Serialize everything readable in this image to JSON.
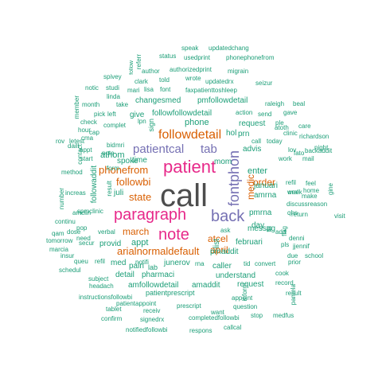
{
  "colors": {
    "t1": "#4d4d4d",
    "t2": "#e7298a",
    "t3": "#7570b3",
    "t4": "#d95f02",
    "t5": "#1b9e77"
  },
  "words": [
    {
      "text": "call",
      "tier": 1
    },
    {
      "text": "patient",
      "tier": 2
    },
    {
      "text": "paragraph",
      "tier": 2
    },
    {
      "text": "note",
      "tier": 2
    },
    {
      "text": "back",
      "tier": 3
    },
    {
      "text": "fontphon",
      "tier": 3
    },
    {
      "text": "patientcal",
      "tier": 3
    },
    {
      "text": "tab",
      "tier": 3
    },
    {
      "text": "followdetail",
      "tier": 4
    },
    {
      "text": "phonefrom",
      "tier": 4
    },
    {
      "text": "followbi",
      "tier": 4
    },
    {
      "text": "arialnormaldefault",
      "tier": 4
    },
    {
      "text": "state",
      "tier": 4
    },
    {
      "text": "march",
      "tier": 4
    },
    {
      "text": "atcel",
      "tier": 4
    },
    {
      "text": "april",
      "tier": 4
    },
    {
      "text": "medic",
      "tier": 4
    },
    {
      "text": "order",
      "tier": 4
    },
    {
      "text": "speak",
      "tier": 5
    },
    {
      "text": "updatedchang",
      "tier": 5
    },
    {
      "text": "status",
      "tier": 5
    },
    {
      "text": "usedprint",
      "tier": 5
    },
    {
      "text": "phonephonefrom",
      "tier": 5
    },
    {
      "text": "referr",
      "tier": 5
    },
    {
      "text": "follow",
      "tier": 5
    },
    {
      "text": "author",
      "tier": 5
    },
    {
      "text": "authorizedprint",
      "tier": 5
    },
    {
      "text": "migrain",
      "tier": 5
    },
    {
      "text": "spivey",
      "tier": 5
    },
    {
      "text": "clark",
      "tier": 5
    },
    {
      "text": "told",
      "tier": 5
    },
    {
      "text": "wrote",
      "tier": 5
    },
    {
      "text": "updatedrx",
      "tier": 5
    },
    {
      "text": "seizur",
      "tier": 5
    },
    {
      "text": "notic",
      "tier": 5
    },
    {
      "text": "studi",
      "tier": 5
    },
    {
      "text": "mari",
      "tier": 5
    },
    {
      "text": "lisa",
      "tier": 5
    },
    {
      "text": "font",
      "tier": 5
    },
    {
      "text": "faxpatienttoshleep",
      "tier": 5
    },
    {
      "text": "linda",
      "tier": 5
    },
    {
      "text": "member",
      "tier": 5
    },
    {
      "text": "month",
      "tier": 5
    },
    {
      "text": "take",
      "tier": 5
    },
    {
      "text": "changesmed",
      "tier": 5
    },
    {
      "text": "pmfollowdetail",
      "tier": 5
    },
    {
      "text": "raleigh",
      "tier": 5
    },
    {
      "text": "beal",
      "tier": 5
    },
    {
      "text": "pick",
      "tier": 5
    },
    {
      "text": "left",
      "tier": 5
    },
    {
      "text": "give",
      "tier": 5
    },
    {
      "text": "followfollowdetail",
      "tier": 5
    },
    {
      "text": "action",
      "tier": 5
    },
    {
      "text": "send",
      "tier": 5
    },
    {
      "text": "gave",
      "tier": 5
    },
    {
      "text": "check",
      "tier": 5
    },
    {
      "text": "hour",
      "tier": 5
    },
    {
      "text": "complet",
      "tier": 5
    },
    {
      "text": "lpn",
      "tier": 5
    },
    {
      "text": "sign",
      "tier": 5
    },
    {
      "text": "phone",
      "tier": 5
    },
    {
      "text": "request",
      "tier": 5
    },
    {
      "text": "ple",
      "tier": 5
    },
    {
      "text": "atoth",
      "tier": 5
    },
    {
      "text": "clinic",
      "tier": 5
    },
    {
      "text": "care",
      "tier": 5
    },
    {
      "text": "cap",
      "tier": 5
    },
    {
      "text": "cma",
      "tier": 5
    },
    {
      "text": "bid",
      "tier": 5
    },
    {
      "text": "mri",
      "tier": 5
    },
    {
      "text": "hol",
      "tier": 5
    },
    {
      "text": "prn",
      "tier": 5
    },
    {
      "text": "today",
      "tier": 5
    },
    {
      "text": "call",
      "tier": 5
    },
    {
      "text": "richardson",
      "tier": 5
    },
    {
      "text": "daili",
      "tier": 5
    },
    {
      "text": "note",
      "tier": 5
    },
    {
      "text": "athom",
      "tier": 5
    },
    {
      "text": "spoke",
      "tier": 5
    },
    {
      "text": "advis",
      "tier": 5
    },
    {
      "text": "lov",
      "tier": 5
    },
    {
      "text": "night",
      "tier": 5
    },
    {
      "text": "appt",
      "tier": 5
    },
    {
      "text": "fato",
      "tier": 5
    },
    {
      "text": "rov",
      "tier": 5
    },
    {
      "text": "letest",
      "tier": 5
    },
    {
      "text": "start",
      "tier": 5
    },
    {
      "text": "time",
      "tier": 5
    },
    {
      "text": "mom",
      "tier": 5
    },
    {
      "text": "work",
      "tier": 5
    },
    {
      "text": "mail",
      "tier": 5
    },
    {
      "text": "contact",
      "tier": 5
    },
    {
      "text": "form",
      "tier": 5
    },
    {
      "text": "backaddit",
      "tier": 5
    },
    {
      "text": "method",
      "tier": 5
    },
    {
      "text": "followaddit",
      "tier": 5
    },
    {
      "text": "enter",
      "tier": 5
    },
    {
      "text": "refil",
      "tier": 5
    },
    {
      "text": "feel",
      "tier": 5
    },
    {
      "text": "week",
      "tier": 5
    },
    {
      "text": "number",
      "tier": 5
    },
    {
      "text": "result",
      "tier": 5
    },
    {
      "text": "januari",
      "tier": 5
    },
    {
      "text": "oral",
      "tier": 5
    },
    {
      "text": "home",
      "tier": 5
    },
    {
      "text": "gine",
      "tier": 5
    },
    {
      "text": "increas",
      "tier": 5
    },
    {
      "text": "juli",
      "tier": 5
    },
    {
      "text": "amrna",
      "tier": 5
    },
    {
      "text": "make",
      "tier": 5
    },
    {
      "text": "dose",
      "tier": 5
    },
    {
      "text": "discussreason",
      "tier": 5
    },
    {
      "text": "qhs",
      "tier": 5
    },
    {
      "text": "spmclinic",
      "tier": 5
    },
    {
      "text": "pmrna",
      "tier": 5
    },
    {
      "text": "day",
      "tier": 5
    },
    {
      "text": "continu",
      "tier": 5
    },
    {
      "text": "return",
      "tier": 5
    },
    {
      "text": "visit",
      "tier": 5
    },
    {
      "text": "qam",
      "tier": 5
    },
    {
      "text": "messag",
      "tier": 5
    },
    {
      "text": "fill",
      "tier": 5
    },
    {
      "text": "flag",
      "tier": 5
    },
    {
      "text": "add",
      "tier": 5
    },
    {
      "text": "tomorrow",
      "tier": 5
    },
    {
      "text": "pop",
      "tier": 5
    },
    {
      "text": "verbal",
      "tier": 5
    },
    {
      "text": "ask",
      "tier": 5
    },
    {
      "text": "denni",
      "tier": 5
    },
    {
      "text": "jjennif",
      "tier": 5
    },
    {
      "text": "marcia",
      "tier": 5
    },
    {
      "text": "need",
      "tier": 5
    },
    {
      "text": "list",
      "tier": 5
    },
    {
      "text": "appt",
      "tier": 5
    },
    {
      "text": "februari",
      "tier": 5
    },
    {
      "text": "pls",
      "tier": 5
    },
    {
      "text": "due",
      "tier": 5
    },
    {
      "text": "insur",
      "tier": 5
    },
    {
      "text": "provid",
      "tier": 5
    },
    {
      "text": "amclin",
      "tier": 5
    },
    {
      "text": "notifi",
      "tier": 5
    },
    {
      "text": "pmaddit",
      "tier": 5
    },
    {
      "text": "school",
      "tier": 5
    },
    {
      "text": "queu",
      "tier": 5
    },
    {
      "text": "refil",
      "tier": 5
    },
    {
      "text": "secur",
      "tier": 5
    },
    {
      "text": "junerov",
      "tier": 5
    },
    {
      "text": "med",
      "tier": 5
    },
    {
      "text": "tid",
      "tier": 5
    },
    {
      "text": "convert",
      "tier": 5
    },
    {
      "text": "schedul",
      "tier": 5
    },
    {
      "text": "pain",
      "tier": 5
    },
    {
      "text": "caller",
      "tier": 5
    },
    {
      "text": "rna",
      "tier": 5
    },
    {
      "text": "prior",
      "tier": 5
    },
    {
      "text": "subject",
      "tier": 5
    },
    {
      "text": "detail",
      "tier": 5
    },
    {
      "text": "pharmaci",
      "tier": 5
    },
    {
      "text": "lab",
      "tier": 5
    },
    {
      "text": "understand",
      "tier": 5
    },
    {
      "text": "cook",
      "tier": 5
    },
    {
      "text": "headach",
      "tier": 5
    },
    {
      "text": "amfollowdetail",
      "tier": 5
    },
    {
      "text": "amaddit",
      "tier": 5
    },
    {
      "text": "request",
      "tier": 5
    },
    {
      "text": "record",
      "tier": 5
    },
    {
      "text": "instructionsfollowbi",
      "tier": 5
    },
    {
      "text": "patientprescript",
      "tier": 5
    },
    {
      "text": "inform",
      "tier": 5
    },
    {
      "text": "appoint",
      "tier": 5
    },
    {
      "text": "result",
      "tier": 5
    },
    {
      "text": "patientappoint",
      "tier": 5
    },
    {
      "text": "prescript",
      "tier": 5
    },
    {
      "text": "question",
      "tier": 5
    },
    {
      "text": "tablet",
      "tier": 5
    },
    {
      "text": "receiv",
      "tier": 5
    },
    {
      "text": "want",
      "tier": 5
    },
    {
      "text": "pamela",
      "tier": 5
    },
    {
      "text": "medfus",
      "tier": 5
    },
    {
      "text": "confirm",
      "tier": 5
    },
    {
      "text": "signedrx",
      "tier": 5
    },
    {
      "text": "completedfollowbi",
      "tier": 5
    },
    {
      "text": "stop",
      "tier": 5
    },
    {
      "text": "notifiedfollowbi",
      "tier": 5
    },
    {
      "text": "callcal",
      "tier": 5
    },
    {
      "text": "respons",
      "tier": 5
    }
  ]
}
